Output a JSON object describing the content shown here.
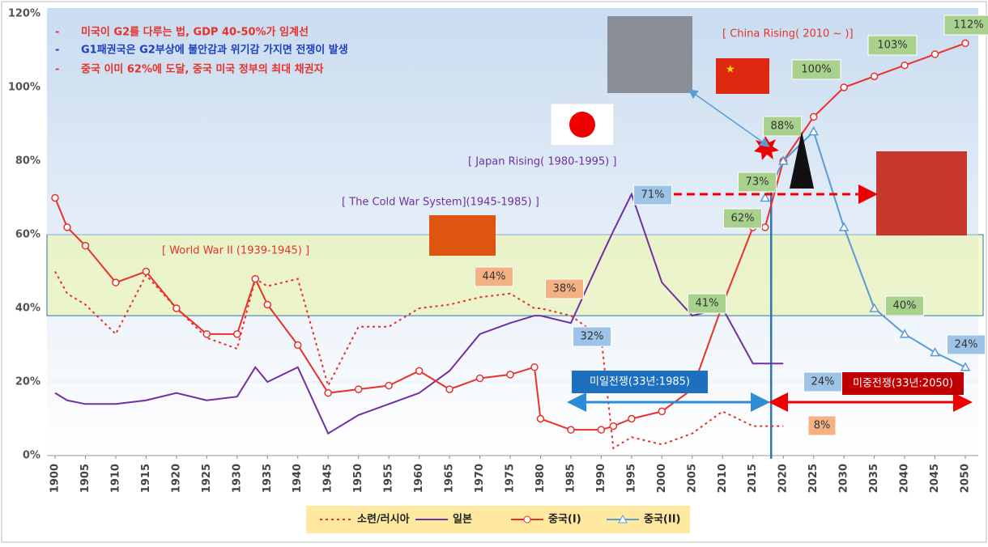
{
  "chart_data": {
    "type": "line",
    "notes": [
      "미국이 G2를 다루는 법, GDP 40-50%가 임계선",
      "G1패권국은 G2부상에 불안감과 위기감 가지면 전쟁이 발생",
      "중국 이미 62%에 도달, 중국 미국 정부의 최대 채권자"
    ],
    "era_labels": [
      "[ China Rising( 2010 ~    )]",
      "[ Japan Rising( 1980-1995) ]",
      "[ The Cold War System](1945-1985) ]",
      "[ World War II (1939-1945) ]"
    ],
    "war_labels": [
      "미일전쟁(33년:1985)",
      "미중전쟁(33년:2050)"
    ],
    "callouts": [
      "44%",
      "38%",
      "32%",
      "24%",
      "8%",
      "71%",
      "41%",
      "62%",
      "73%",
      "88%",
      "100%",
      "103%",
      "112%",
      "40%",
      "24%"
    ],
    "x": [
      1900,
      1902,
      1905,
      1910,
      1915,
      1920,
      1925,
      1930,
      1933,
      1935,
      1940,
      1945,
      1950,
      1955,
      1960,
      1965,
      1970,
      1975,
      1979,
      1980,
      1985,
      1990,
      1992,
      1995,
      2000,
      2005,
      2010,
      2015,
      2017,
      2020,
      2025,
      2030,
      2035,
      2040,
      2045,
      2050
    ],
    "xlim": [
      1900,
      2050
    ],
    "xticks": [
      1900,
      1905,
      1910,
      1915,
      1920,
      1925,
      1930,
      1935,
      1940,
      1945,
      1950,
      1955,
      1960,
      1965,
      1970,
      1975,
      1980,
      1985,
      1990,
      1995,
      2000,
      2005,
      2010,
      2015,
      2020,
      2025,
      2030,
      2035,
      2040,
      2045,
      2050
    ],
    "ylim": [
      0,
      120
    ],
    "yticks": [
      {
        "value": 0,
        "label": "0%"
      },
      {
        "value": 20,
        "label": "20%"
      },
      {
        "value": 40,
        "label": "40%"
      },
      {
        "value": 60,
        "label": "60%"
      },
      {
        "value": 80,
        "label": "80%"
      },
      {
        "value": 100,
        "label": "100%"
      },
      {
        "value": 120,
        "label": "120%"
      }
    ],
    "highlight_band": [
      38,
      60
    ],
    "marker_year": 2018,
    "series": [
      {
        "name": "소련/러시아",
        "color": "#e8312a",
        "dash": true,
        "marker": "none",
        "values": [
          50,
          44,
          41,
          33,
          49,
          40,
          32,
          29,
          48,
          46,
          48,
          19,
          35,
          35,
          40,
          41,
          43,
          44,
          40,
          40,
          38,
          32,
          2,
          5,
          3,
          6,
          12,
          8,
          8,
          8,
          null,
          null,
          null,
          null,
          null,
          null
        ]
      },
      {
        "name": "일본",
        "color": "#7030a0",
        "dash": false,
        "marker": "none",
        "values": [
          17,
          15,
          14,
          14,
          15,
          17,
          15,
          16,
          24,
          20,
          24,
          6,
          11,
          14,
          17,
          23,
          33,
          36,
          38,
          38,
          36,
          54,
          61,
          71,
          47,
          38,
          40,
          25,
          25,
          25,
          null,
          null,
          null,
          null,
          null,
          null
        ]
      },
      {
        "name": "중국(I)",
        "color": "#e8312a",
        "dash": false,
        "marker": "circle",
        "values": [
          70,
          62,
          57,
          47,
          50,
          40,
          33,
          33,
          48,
          41,
          30,
          17,
          18,
          19,
          23,
          18,
          21,
          22,
          24,
          10,
          7,
          7,
          8,
          10,
          12,
          18,
          41,
          62,
          62,
          80,
          92,
          100,
          103,
          106,
          109,
          112
        ]
      },
      {
        "name": "중국(II)",
        "color": "#5b9bd5",
        "dash": false,
        "marker": "triangle",
        "values": [
          null,
          null,
          null,
          null,
          null,
          null,
          null,
          null,
          null,
          null,
          null,
          null,
          null,
          null,
          null,
          null,
          null,
          null,
          null,
          null,
          null,
          null,
          null,
          null,
          null,
          null,
          null,
          null,
          70,
          80,
          88,
          62,
          40,
          33,
          28,
          24
        ]
      }
    ]
  }
}
